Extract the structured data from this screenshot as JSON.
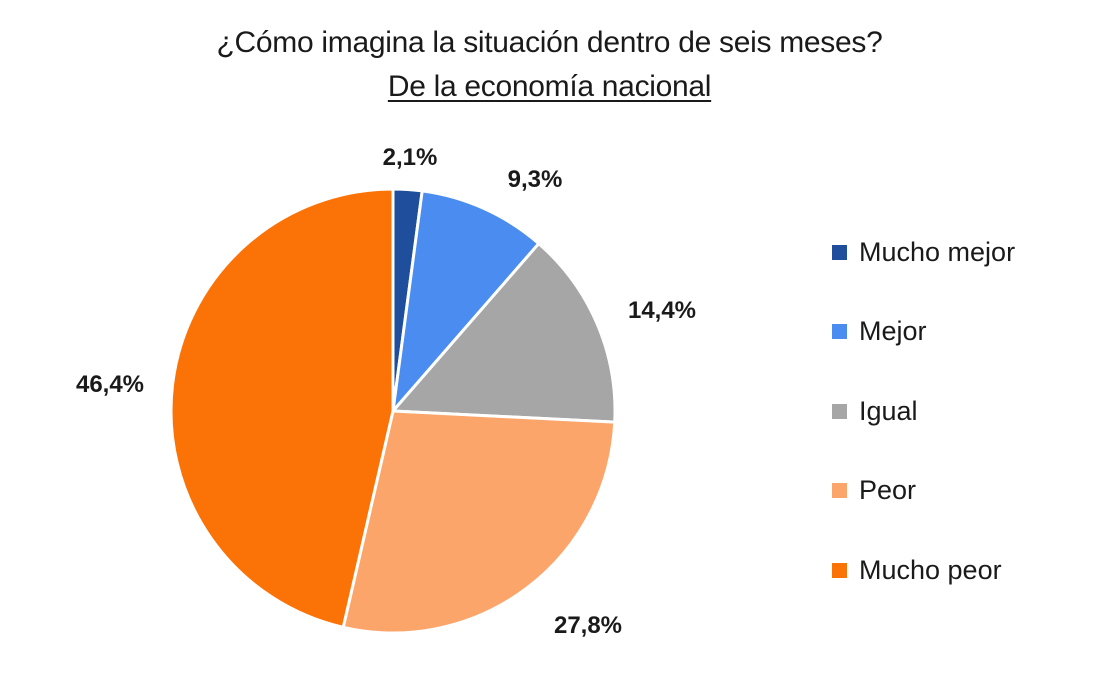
{
  "chart_data": {
    "type": "pie",
    "title": "¿Cómo imagina la situación dentro de seis meses?",
    "subtitle": "De la economía nacional",
    "slices": [
      {
        "label": "Mucho mejor",
        "value": 2.1,
        "display": "2,1%",
        "color": "#1f4e9c"
      },
      {
        "label": "Mejor",
        "value": 9.3,
        "display": "9,3%",
        "color": "#4a8cf0"
      },
      {
        "label": "Igual",
        "value": 14.4,
        "display": "14,4%",
        "color": "#a6a6a6"
      },
      {
        "label": "Peor",
        "value": 27.8,
        "display": "27,8%",
        "color": "#fba56a"
      },
      {
        "label": "Mucho peor",
        "value": 46.4,
        "display": "46,4%",
        "color": "#fb7206"
      }
    ],
    "legend_position": "right"
  }
}
